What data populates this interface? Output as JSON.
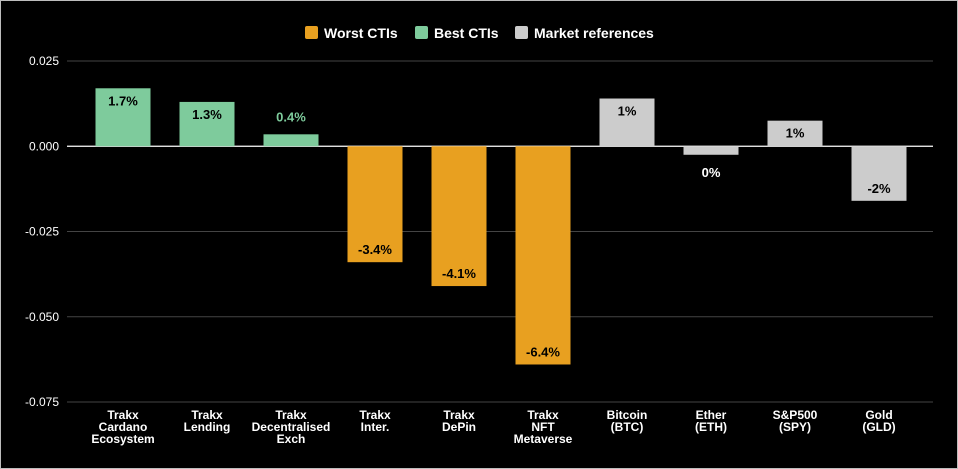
{
  "chart_data": {
    "type": "bar",
    "legend": {
      "placement": "top-center",
      "entries": [
        {
          "name": "Worst CTIs",
          "color": "#e8a020"
        },
        {
          "name": "Best CTIs",
          "color": "#7ecb9c"
        },
        {
          "name": "Market references",
          "color": "#cccccc"
        }
      ]
    },
    "categories": [
      [
        "Trakx",
        "Cardano",
        "Ecosystem"
      ],
      [
        "Trakx",
        "Lending"
      ],
      [
        "Trakx",
        "Decentralised",
        "Exch"
      ],
      [
        "Trakx",
        "Inter."
      ],
      [
        "Trakx",
        "DePin"
      ],
      [
        "Trakx",
        "NFT",
        "Metaverse"
      ],
      [
        "Bitcoin",
        "(BTC)"
      ],
      [
        "Ether",
        "(ETH)"
      ],
      [
        "S&P500",
        "(SPY)"
      ],
      [
        "Gold",
        "(GLD)"
      ]
    ],
    "values": [
      0.017,
      0.013,
      0.0035,
      -0.034,
      -0.041,
      -0.064,
      0.014,
      -0.0025,
      0.0075,
      -0.016
    ],
    "groups": [
      "Best CTIs",
      "Best CTIs",
      "Best CTIs",
      "Worst CTIs",
      "Worst CTIs",
      "Worst CTIs",
      "Market references",
      "Market references",
      "Market references",
      "Market references"
    ],
    "data_labels": [
      "1.7%",
      "1.3%",
      "0.4%",
      "-3.4%",
      "-4.1%",
      "-6.4%",
      "1%",
      "0%",
      "1%",
      "-2%"
    ],
    "y_ticks": [
      "0.025",
      "0.000",
      "-0.025",
      "-0.050",
      "-0.075"
    ],
    "y_tick_values": [
      0.025,
      0.0,
      -0.025,
      -0.05,
      -0.075
    ],
    "ylim": [
      -0.075,
      0.025
    ],
    "grid": true,
    "title": "",
    "xlabel": "",
    "ylabel": ""
  }
}
